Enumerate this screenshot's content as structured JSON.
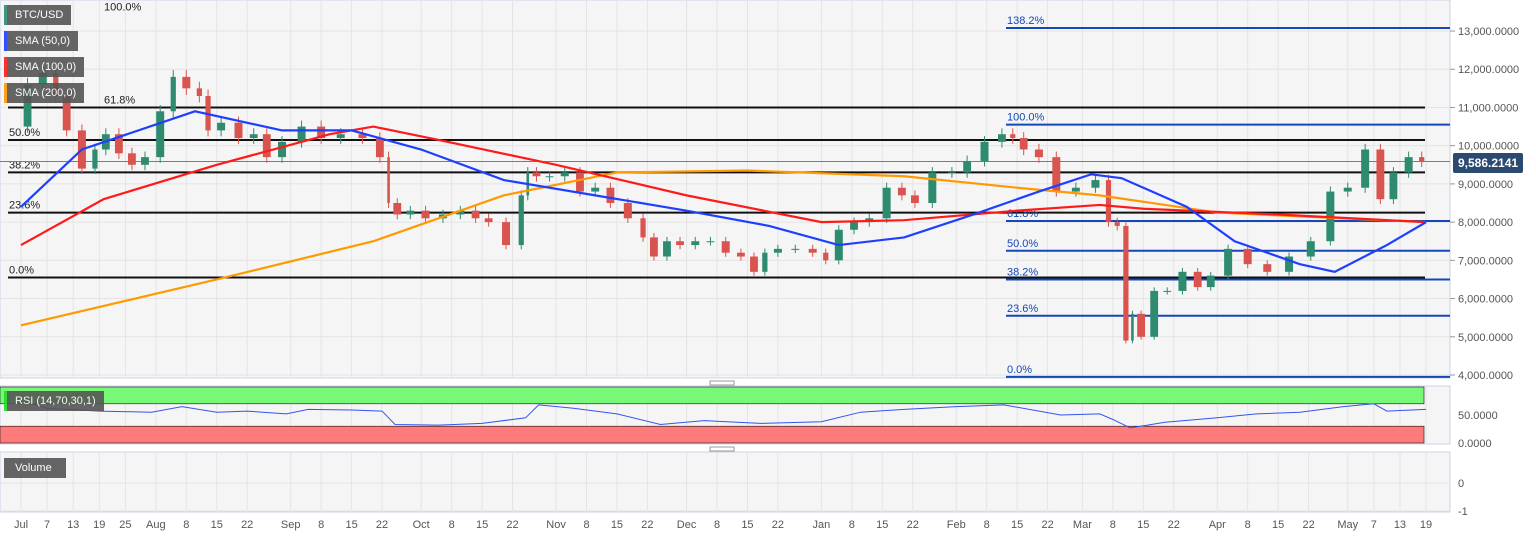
{
  "chart_data": {
    "type": "candlestick",
    "symbol": "BTC/USD",
    "current_price": "9,586.2141",
    "indicators": [
      {
        "name": "SMA (50,0)",
        "color": "#1f3fff"
      },
      {
        "name": "SMA (100,0)",
        "color": "#ff1a1a"
      },
      {
        "name": "SMA (200,0)",
        "color": "#ff9900"
      }
    ],
    "price_axis": {
      "ylim": [
        4000,
        13900
      ],
      "ticks": [
        "4,000.0000",
        "5,000.0000",
        "6,000.0000",
        "7,000.0000",
        "8,000.0000",
        "9,000.0000",
        "10,000.0000",
        "11,000.0000",
        "12,000.0000",
        "13,000.0000"
      ],
      "tick_values": [
        4000,
        5000,
        6000,
        7000,
        8000,
        9000,
        10000,
        11000,
        12000,
        13000
      ]
    },
    "x_ticks": [
      {
        "label": "Jul",
        "date": "2019-07-01"
      },
      {
        "label": "7",
        "date": "2019-07-07"
      },
      {
        "label": "13",
        "date": "2019-07-13"
      },
      {
        "label": "19",
        "date": "2019-07-19"
      },
      {
        "label": "25",
        "date": "2019-07-25"
      },
      {
        "label": "Aug",
        "date": "2019-08-01"
      },
      {
        "label": "8",
        "date": "2019-08-08"
      },
      {
        "label": "15",
        "date": "2019-08-15"
      },
      {
        "label": "22",
        "date": "2019-08-22"
      },
      {
        "label": "Sep",
        "date": "2019-09-01"
      },
      {
        "label": "8",
        "date": "2019-09-08"
      },
      {
        "label": "15",
        "date": "2019-09-15"
      },
      {
        "label": "22",
        "date": "2019-09-22"
      },
      {
        "label": "Oct",
        "date": "2019-10-01"
      },
      {
        "label": "8",
        "date": "2019-10-08"
      },
      {
        "label": "15",
        "date": "2019-10-15"
      },
      {
        "label": "22",
        "date": "2019-10-22"
      },
      {
        "label": "Nov",
        "date": "2019-11-01"
      },
      {
        "label": "8",
        "date": "2019-11-08"
      },
      {
        "label": "15",
        "date": "2019-11-15"
      },
      {
        "label": "22",
        "date": "2019-11-22"
      },
      {
        "label": "Dec",
        "date": "2019-12-01"
      },
      {
        "label": "8",
        "date": "2019-12-08"
      },
      {
        "label": "15",
        "date": "2019-12-15"
      },
      {
        "label": "22",
        "date": "2019-12-22"
      },
      {
        "label": "Jan",
        "date": "2020-01-01"
      },
      {
        "label": "8",
        "date": "2020-01-08"
      },
      {
        "label": "15",
        "date": "2020-01-15"
      },
      {
        "label": "22",
        "date": "2020-01-22"
      },
      {
        "label": "Feb",
        "date": "2020-02-01"
      },
      {
        "label": "8",
        "date": "2020-02-08"
      },
      {
        "label": "15",
        "date": "2020-02-15"
      },
      {
        "label": "22",
        "date": "2020-02-22"
      },
      {
        "label": "Mar",
        "date": "2020-03-01"
      },
      {
        "label": "8",
        "date": "2020-03-08"
      },
      {
        "label": "15",
        "date": "2020-03-15"
      },
      {
        "label": "22",
        "date": "2020-03-22"
      },
      {
        "label": "Apr",
        "date": "2020-04-01"
      },
      {
        "label": "8",
        "date": "2020-04-08"
      },
      {
        "label": "15",
        "date": "2020-04-15"
      },
      {
        "label": "22",
        "date": "2020-04-22"
      },
      {
        "label": "May",
        "date": "2020-05-01"
      },
      {
        "label": "7",
        "date": "2020-05-07"
      },
      {
        "label": "13",
        "date": "2020-05-13"
      },
      {
        "label": "19",
        "date": "2020-05-19"
      }
    ],
    "closes": [
      [
        "2019-07-01",
        10500
      ],
      [
        "2019-07-04",
        11600
      ],
      [
        "2019-07-08",
        11900
      ],
      [
        "2019-07-10",
        11300
      ],
      [
        "2019-07-13",
        10400
      ],
      [
        "2019-07-17",
        9400
      ],
      [
        "2019-07-19",
        9900
      ],
      [
        "2019-07-22",
        10300
      ],
      [
        "2019-07-25",
        9800
      ],
      [
        "2019-07-28",
        9500
      ],
      [
        "2019-07-31",
        9700
      ],
      [
        "2019-08-04",
        10900
      ],
      [
        "2019-08-06",
        11800
      ],
      [
        "2019-08-10",
        11500
      ],
      [
        "2019-08-12",
        11300
      ],
      [
        "2019-08-14",
        10400
      ],
      [
        "2019-08-18",
        10600
      ],
      [
        "2019-08-22",
        10200
      ],
      [
        "2019-08-25",
        10300
      ],
      [
        "2019-08-28",
        9700
      ],
      [
        "2019-09-01",
        10100
      ],
      [
        "2019-09-06",
        10500
      ],
      [
        "2019-09-10",
        10200
      ],
      [
        "2019-09-15",
        10300
      ],
      [
        "2019-09-20",
        10200
      ],
      [
        "2019-09-23",
        9700
      ],
      [
        "2019-09-24",
        8500
      ],
      [
        "2019-09-27",
        8200
      ],
      [
        "2019-09-30",
        8300
      ],
      [
        "2019-10-04",
        8100
      ],
      [
        "2019-10-08",
        8200
      ],
      [
        "2019-10-12",
        8300
      ],
      [
        "2019-10-15",
        8100
      ],
      [
        "2019-10-18",
        8000
      ],
      [
        "2019-10-23",
        7400
      ],
      [
        "2019-10-25",
        8700
      ],
      [
        "2019-10-26",
        9300
      ],
      [
        "2019-10-29",
        9200
      ],
      [
        "2019-11-01",
        9200
      ],
      [
        "2019-11-05",
        9300
      ],
      [
        "2019-11-08",
        8800
      ],
      [
        "2019-11-12",
        8900
      ],
      [
        "2019-11-15",
        8500
      ],
      [
        "2019-11-20",
        8100
      ],
      [
        "2019-11-22",
        7600
      ],
      [
        "2019-11-25",
        7100
      ],
      [
        "2019-11-28",
        7500
      ],
      [
        "2019-12-01",
        7400
      ],
      [
        "2019-12-05",
        7500
      ],
      [
        "2019-12-08",
        7500
      ],
      [
        "2019-12-12",
        7200
      ],
      [
        "2019-12-15",
        7100
      ],
      [
        "2019-12-18",
        6700
      ],
      [
        "2019-12-20",
        7200
      ],
      [
        "2019-12-24",
        7300
      ],
      [
        "2019-12-28",
        7300
      ],
      [
        "2020-01-01",
        7200
      ],
      [
        "2020-01-03",
        7000
      ],
      [
        "2020-01-07",
        7800
      ],
      [
        "2020-01-10",
        8000
      ],
      [
        "2020-01-14",
        8100
      ],
      [
        "2020-01-18",
        8900
      ],
      [
        "2020-01-21",
        8700
      ],
      [
        "2020-01-24",
        8500
      ],
      [
        "2020-01-29",
        9300
      ],
      [
        "2020-02-02",
        9300
      ],
      [
        "2020-02-05",
        9600
      ],
      [
        "2020-02-10",
        10100
      ],
      [
        "2020-02-13",
        10300
      ],
      [
        "2020-02-15",
        10200
      ],
      [
        "2020-02-18",
        9900
      ],
      [
        "2020-02-22",
        9700
      ],
      [
        "2020-02-26",
        8800
      ],
      [
        "2020-03-02",
        8900
      ],
      [
        "2020-03-06",
        9100
      ],
      [
        "2020-03-08",
        8000
      ],
      [
        "2020-03-10",
        7900
      ],
      [
        "2020-03-12",
        4900
      ],
      [
        "2020-03-13",
        5600
      ],
      [
        "2020-03-16",
        5000
      ],
      [
        "2020-03-19",
        6200
      ],
      [
        "2020-03-22",
        6200
      ],
      [
        "2020-03-26",
        6700
      ],
      [
        "2020-03-29",
        6300
      ],
      [
        "2020-04-01",
        6600
      ],
      [
        "2020-04-06",
        7300
      ],
      [
        "2020-04-10",
        6900
      ],
      [
        "2020-04-15",
        6700
      ],
      [
        "2020-04-20",
        7100
      ],
      [
        "2020-04-25",
        7500
      ],
      [
        "2020-04-29",
        8800
      ],
      [
        "2020-05-03",
        8900
      ],
      [
        "2020-05-07",
        9900
      ],
      [
        "2020-05-10",
        8600
      ],
      [
        "2020-05-13",
        9300
      ],
      [
        "2020-05-17",
        9700
      ],
      [
        "2020-05-19",
        9586.2141
      ]
    ],
    "sma50": [
      [
        "2019-07-01",
        8400
      ],
      [
        "2019-07-15",
        9900
      ],
      [
        "2019-08-10",
        10900
      ],
      [
        "2019-08-30",
        10400
      ],
      [
        "2019-09-15",
        10400
      ],
      [
        "2019-10-01",
        9900
      ],
      [
        "2019-10-20",
        9100
      ],
      [
        "2019-11-10",
        8700
      ],
      [
        "2019-12-01",
        8300
      ],
      [
        "2019-12-20",
        7900
      ],
      [
        "2020-01-05",
        7400
      ],
      [
        "2020-01-20",
        7600
      ],
      [
        "2020-02-05",
        8200
      ],
      [
        "2020-02-20",
        8800
      ],
      [
        "2020-03-03",
        9250
      ],
      [
        "2020-03-10",
        9150
      ],
      [
        "2020-03-25",
        8400
      ],
      [
        "2020-04-05",
        7500
      ],
      [
        "2020-04-20",
        6900
      ],
      [
        "2020-04-28",
        6700
      ],
      [
        "2020-05-10",
        7400
      ],
      [
        "2020-05-19",
        8000
      ]
    ],
    "sma100": [
      [
        "2019-07-01",
        7400
      ],
      [
        "2019-07-20",
        8600
      ],
      [
        "2019-08-15",
        9500
      ],
      [
        "2019-09-10",
        10300
      ],
      [
        "2019-09-20",
        10500
      ],
      [
        "2019-10-05",
        10150
      ],
      [
        "2019-11-01",
        9500
      ],
      [
        "2019-12-01",
        8700
      ],
      [
        "2020-01-01",
        8000
      ],
      [
        "2020-01-20",
        8050
      ],
      [
        "2020-02-15",
        8300
      ],
      [
        "2020-03-05",
        8450
      ],
      [
        "2020-03-15",
        8350
      ],
      [
        "2020-04-15",
        8200
      ],
      [
        "2020-05-19",
        8000
      ]
    ],
    "sma200": [
      [
        "2019-07-01",
        5300
      ],
      [
        "2019-08-15",
        6500
      ],
      [
        "2019-09-20",
        7500
      ],
      [
        "2019-10-20",
        8700
      ],
      [
        "2019-11-15",
        9300
      ],
      [
        "2019-12-15",
        9350
      ],
      [
        "2020-01-20",
        9200
      ],
      [
        "2020-02-15",
        8900
      ],
      [
        "2020-03-05",
        8700
      ],
      [
        "2020-04-01",
        8250
      ],
      [
        "2020-05-19",
        8000
      ]
    ],
    "fib_levels_left": [
      {
        "label": "100.0%",
        "value": 13850
      },
      {
        "label": "61.8%",
        "value": 11000
      },
      {
        "label": "50.0%",
        "value": 10150
      },
      {
        "label": "38.2%",
        "value": 9300
      },
      {
        "label": "23.6%",
        "value": 8250
      },
      {
        "label": "0.0%",
        "value": 6550
      }
    ],
    "fib_levels_right": [
      {
        "label": "138.2%",
        "value": 13080
      },
      {
        "label": "100.0%",
        "value": 10550
      },
      {
        "label": "61.8%",
        "value": 8030
      },
      {
        "label": "50.0%",
        "value": 7250
      },
      {
        "label": "38.2%",
        "value": 6500
      },
      {
        "label": "23.6%",
        "value": 5550
      },
      {
        "label": "0.0%",
        "value": 3950
      }
    ],
    "rsi": {
      "name": "RSI (14,70,30,1)",
      "ticks": [
        "50.0000",
        "0.0000"
      ],
      "tick_values": [
        50,
        0
      ],
      "upper": 70,
      "lower": 30,
      "values": [
        [
          "2019-07-01",
          75
        ],
        [
          "2019-07-07",
          62
        ],
        [
          "2019-07-19",
          57
        ],
        [
          "2019-07-31",
          55
        ],
        [
          "2019-08-07",
          65
        ],
        [
          "2019-08-15",
          55
        ],
        [
          "2019-08-22",
          57
        ],
        [
          "2019-08-31",
          52
        ],
        [
          "2019-09-05",
          60
        ],
        [
          "2019-09-15",
          59
        ],
        [
          "2019-09-22",
          57
        ],
        [
          "2019-09-25",
          33
        ],
        [
          "2019-10-05",
          32
        ],
        [
          "2019-10-15",
          35
        ],
        [
          "2019-10-25",
          45
        ],
        [
          "2019-10-28",
          68
        ],
        [
          "2019-11-05",
          62
        ],
        [
          "2019-11-15",
          52
        ],
        [
          "2019-11-25",
          33
        ],
        [
          "2019-12-05",
          40
        ],
        [
          "2019-12-18",
          35
        ],
        [
          "2020-01-01",
          38
        ],
        [
          "2020-01-10",
          55
        ],
        [
          "2020-01-20",
          60
        ],
        [
          "2020-02-01",
          65
        ],
        [
          "2020-02-12",
          68
        ],
        [
          "2020-02-25",
          50
        ],
        [
          "2020-03-05",
          52
        ],
        [
          "2020-03-08",
          42
        ],
        [
          "2020-03-12",
          27
        ],
        [
          "2020-03-20",
          37
        ],
        [
          "2020-04-01",
          45
        ],
        [
          "2020-04-10",
          52
        ],
        [
          "2020-04-20",
          55
        ],
        [
          "2020-04-30",
          65
        ],
        [
          "2020-05-07",
          70
        ],
        [
          "2020-05-10",
          57
        ],
        [
          "2020-05-19",
          60
        ]
      ]
    },
    "volume": {
      "name": "Volume",
      "ticks": [
        "0",
        "-1"
      ],
      "tick_values": [
        0,
        -1
      ]
    },
    "colors": {
      "up": "#2e8b6f",
      "down": "#d9534f",
      "rsi_line": "#3355ee",
      "overbought": "#77f977",
      "oversold": "#ff7b7b",
      "price_tag": "#2b4a6f"
    }
  }
}
